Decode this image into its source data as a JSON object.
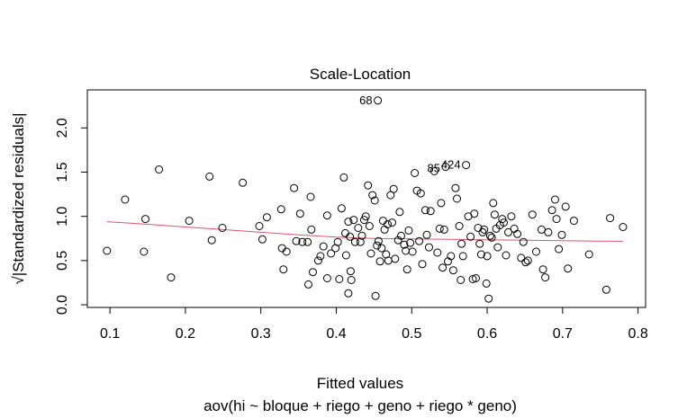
{
  "chart_data": {
    "type": "scatter",
    "title": "Scale-Location",
    "xlabel": "Fitted values",
    "subtitle": "aov(hi ~ bloque + riego + geno + riego * geno)",
    "ylabel": "√|Standardized residuals|",
    "xlim": [
      0.07,
      0.81
    ],
    "ylim": [
      -0.03,
      2.43
    ],
    "x_ticks": [
      0.1,
      0.2,
      0.3,
      0.4,
      0.5,
      0.6,
      0.7,
      0.8
    ],
    "x_tick_labels": [
      "0.1",
      "0.2",
      "0.3",
      "0.4",
      "0.5",
      "0.6",
      "0.7",
      "0.8"
    ],
    "y_ticks": [
      0.0,
      0.5,
      1.0,
      1.5,
      2.0
    ],
    "y_tick_labels": [
      "0.0",
      "0.5",
      "1.0",
      "1.5",
      "2.0"
    ],
    "grid": false,
    "point_color": "#000000",
    "smooth_color": "#DF536B",
    "points": [
      {
        "x": 0.096,
        "y": 0.61
      },
      {
        "x": 0.12,
        "y": 1.19
      },
      {
        "x": 0.147,
        "y": 0.97
      },
      {
        "x": 0.145,
        "y": 0.6
      },
      {
        "x": 0.165,
        "y": 1.53
      },
      {
        "x": 0.181,
        "y": 0.31
      },
      {
        "x": 0.205,
        "y": 0.95
      },
      {
        "x": 0.232,
        "y": 1.45
      },
      {
        "x": 0.235,
        "y": 0.73
      },
      {
        "x": 0.249,
        "y": 0.87
      },
      {
        "x": 0.276,
        "y": 1.38
      },
      {
        "x": 0.298,
        "y": 0.89
      },
      {
        "x": 0.302,
        "y": 0.74
      },
      {
        "x": 0.308,
        "y": 0.99
      },
      {
        "x": 0.327,
        "y": 1.08
      },
      {
        "x": 0.328,
        "y": 0.64
      },
      {
        "x": 0.33,
        "y": 0.4
      },
      {
        "x": 0.334,
        "y": 0.6
      },
      {
        "x": 0.344,
        "y": 1.32
      },
      {
        "x": 0.347,
        "y": 0.72
      },
      {
        "x": 0.352,
        "y": 1.03
      },
      {
        "x": 0.355,
        "y": 0.71
      },
      {
        "x": 0.362,
        "y": 0.71
      },
      {
        "x": 0.363,
        "y": 0.23
      },
      {
        "x": 0.366,
        "y": 1.22
      },
      {
        "x": 0.369,
        "y": 0.37
      },
      {
        "x": 0.367,
        "y": 0.85
      },
      {
        "x": 0.376,
        "y": 0.5
      },
      {
        "x": 0.379,
        "y": 0.55
      },
      {
        "x": 0.383,
        "y": 0.66
      },
      {
        "x": 0.388,
        "y": 1.01
      },
      {
        "x": 0.388,
        "y": 0.3
      },
      {
        "x": 0.393,
        "y": 0.58
      },
      {
        "x": 0.399,
        "y": 0.64
      },
      {
        "x": 0.402,
        "y": 0.71
      },
      {
        "x": 0.404,
        "y": 0.29
      },
      {
        "x": 0.407,
        "y": 1.09
      },
      {
        "x": 0.41,
        "y": 1.44
      },
      {
        "x": 0.412,
        "y": 0.81
      },
      {
        "x": 0.413,
        "y": 0.56
      },
      {
        "x": 0.416,
        "y": 0.94
      },
      {
        "x": 0.416,
        "y": 0.13
      },
      {
        "x": 0.418,
        "y": 0.77
      },
      {
        "x": 0.419,
        "y": 0.38
      },
      {
        "x": 0.42,
        "y": 0.28
      },
      {
        "x": 0.423,
        "y": 0.96
      },
      {
        "x": 0.425,
        "y": 0.71
      },
      {
        "x": 0.429,
        "y": 0.87
      },
      {
        "x": 0.432,
        "y": 0.71
      },
      {
        "x": 0.434,
        "y": 0.78
      },
      {
        "x": 0.437,
        "y": 0.96
      },
      {
        "x": 0.439,
        "y": 1.0
      },
      {
        "x": 0.442,
        "y": 1.35
      },
      {
        "x": 0.444,
        "y": 0.89
      },
      {
        "x": 0.446,
        "y": 0.58
      },
      {
        "x": 0.448,
        "y": 1.24
      },
      {
        "x": 0.451,
        "y": 1.18
      },
      {
        "x": 0.452,
        "y": 0.1
      },
      {
        "x": 0.454,
        "y": 0.67
      },
      {
        "x": 0.455,
        "y": 2.31
      },
      {
        "x": 0.456,
        "y": 0.72
      },
      {
        "x": 0.458,
        "y": 0.49
      },
      {
        "x": 0.46,
        "y": 0.64
      },
      {
        "x": 0.462,
        "y": 0.95
      },
      {
        "x": 0.464,
        "y": 0.85
      },
      {
        "x": 0.466,
        "y": 0.57
      },
      {
        "x": 0.468,
        "y": 0.91
      },
      {
        "x": 0.469,
        "y": 0.5
      },
      {
        "x": 0.472,
        "y": 1.24
      },
      {
        "x": 0.474,
        "y": 0.93
      },
      {
        "x": 0.476,
        "y": 1.31
      },
      {
        "x": 0.478,
        "y": 0.52
      },
      {
        "x": 0.482,
        "y": 0.73
      },
      {
        "x": 0.484,
        "y": 1.05
      },
      {
        "x": 0.486,
        "y": 0.78
      },
      {
        "x": 0.49,
        "y": 0.68
      },
      {
        "x": 0.492,
        "y": 0.61
      },
      {
        "x": 0.494,
        "y": 0.4
      },
      {
        "x": 0.496,
        "y": 0.84
      },
      {
        "x": 0.498,
        "y": 0.7
      },
      {
        "x": 0.501,
        "y": 0.6
      },
      {
        "x": 0.504,
        "y": 1.49
      },
      {
        "x": 0.507,
        "y": 1.29
      },
      {
        "x": 0.51,
        "y": 0.72
      },
      {
        "x": 0.512,
        "y": 1.26
      },
      {
        "x": 0.514,
        "y": 0.46
      },
      {
        "x": 0.518,
        "y": 1.07
      },
      {
        "x": 0.52,
        "y": 0.79
      },
      {
        "x": 0.523,
        "y": 0.65
      },
      {
        "x": 0.525,
        "y": 1.06
      },
      {
        "x": 0.53,
        "y": 1.51
      },
      {
        "x": 0.534,
        "y": 0.59
      },
      {
        "x": 0.537,
        "y": 0.86
      },
      {
        "x": 0.539,
        "y": 1.15
      },
      {
        "x": 0.541,
        "y": 0.42
      },
      {
        "x": 0.543,
        "y": 0.85
      },
      {
        "x": 0.545,
        "y": 1.56
      },
      {
        "x": 0.548,
        "y": 0.49
      },
      {
        "x": 0.552,
        "y": 0.55
      },
      {
        "x": 0.555,
        "y": 0.39
      },
      {
        "x": 0.558,
        "y": 1.32
      },
      {
        "x": 0.56,
        "y": 1.2
      },
      {
        "x": 0.563,
        "y": 0.89
      },
      {
        "x": 0.565,
        "y": 0.28
      },
      {
        "x": 0.566,
        "y": 0.69
      },
      {
        "x": 0.568,
        "y": 0.55
      },
      {
        "x": 0.572,
        "y": 1.58
      },
      {
        "x": 0.575,
        "y": 1.0
      },
      {
        "x": 0.578,
        "y": 0.77
      },
      {
        "x": 0.581,
        "y": 0.29
      },
      {
        "x": 0.583,
        "y": 1.03
      },
      {
        "x": 0.585,
        "y": 0.3
      },
      {
        "x": 0.588,
        "y": 0.87
      },
      {
        "x": 0.59,
        "y": 0.69
      },
      {
        "x": 0.592,
        "y": 0.57
      },
      {
        "x": 0.594,
        "y": 0.82
      },
      {
        "x": 0.596,
        "y": 0.85
      },
      {
        "x": 0.599,
        "y": 0.24
      },
      {
        "x": 0.6,
        "y": 0.55
      },
      {
        "x": 0.602,
        "y": 0.07
      },
      {
        "x": 0.604,
        "y": 0.78
      },
      {
        "x": 0.606,
        "y": 0.76
      },
      {
        "x": 0.608,
        "y": 1.15
      },
      {
        "x": 0.61,
        "y": 1.02
      },
      {
        "x": 0.612,
        "y": 0.86
      },
      {
        "x": 0.614,
        "y": 0.65
      },
      {
        "x": 0.617,
        "y": 0.9
      },
      {
        "x": 0.62,
        "y": 0.97
      },
      {
        "x": 0.622,
        "y": 0.93
      },
      {
        "x": 0.625,
        "y": 0.56
      },
      {
        "x": 0.628,
        "y": 0.82
      },
      {
        "x": 0.632,
        "y": 1.0
      },
      {
        "x": 0.636,
        "y": 0.86
      },
      {
        "x": 0.64,
        "y": 0.8
      },
      {
        "x": 0.645,
        "y": 0.53
      },
      {
        "x": 0.648,
        "y": 0.71
      },
      {
        "x": 0.651,
        "y": 0.48
      },
      {
        "x": 0.654,
        "y": 0.5
      },
      {
        "x": 0.66,
        "y": 1.02
      },
      {
        "x": 0.665,
        "y": 0.6
      },
      {
        "x": 0.672,
        "y": 0.85
      },
      {
        "x": 0.674,
        "y": 0.4
      },
      {
        "x": 0.677,
        "y": 0.31
      },
      {
        "x": 0.681,
        "y": 0.82
      },
      {
        "x": 0.686,
        "y": 1.07
      },
      {
        "x": 0.69,
        "y": 1.19
      },
      {
        "x": 0.692,
        "y": 0.97
      },
      {
        "x": 0.695,
        "y": 0.63
      },
      {
        "x": 0.699,
        "y": 0.79
      },
      {
        "x": 0.704,
        "y": 1.11
      },
      {
        "x": 0.707,
        "y": 0.41
      },
      {
        "x": 0.715,
        "y": 0.95
      },
      {
        "x": 0.735,
        "y": 0.57
      },
      {
        "x": 0.758,
        "y": 0.17
      },
      {
        "x": 0.763,
        "y": 0.98
      },
      {
        "x": 0.78,
        "y": 0.88
      }
    ],
    "labels": [
      {
        "text": "68",
        "x": 0.455,
        "y": 2.31
      },
      {
        "text": "424",
        "x": 0.572,
        "y": 1.58
      },
      {
        "text": "85",
        "x": 0.545,
        "y": 1.54
      }
    ],
    "smooth": [
      {
        "x": 0.096,
        "y": 0.94
      },
      {
        "x": 0.15,
        "y": 0.91
      },
      {
        "x": 0.2,
        "y": 0.88
      },
      {
        "x": 0.25,
        "y": 0.85
      },
      {
        "x": 0.3,
        "y": 0.82
      },
      {
        "x": 0.35,
        "y": 0.79
      },
      {
        "x": 0.4,
        "y": 0.765
      },
      {
        "x": 0.45,
        "y": 0.75
      },
      {
        "x": 0.5,
        "y": 0.745
      },
      {
        "x": 0.55,
        "y": 0.74
      },
      {
        "x": 0.6,
        "y": 0.735
      },
      {
        "x": 0.65,
        "y": 0.73
      },
      {
        "x": 0.7,
        "y": 0.725
      },
      {
        "x": 0.75,
        "y": 0.72
      },
      {
        "x": 0.78,
        "y": 0.718
      }
    ]
  }
}
